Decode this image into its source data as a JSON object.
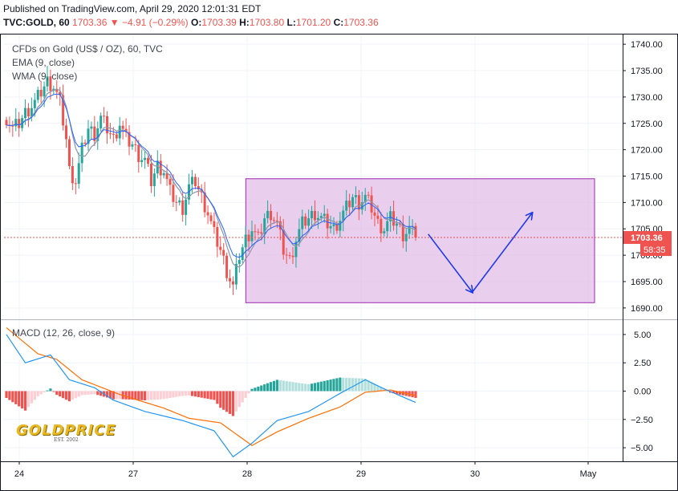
{
  "header": {
    "published": "Published on TradingView.com, April 29, 2020 12:01:31 EDT",
    "symbol": "TVC:GOLD, 60",
    "change": "1703.36 ▼ −4.91 (−0.29%)",
    "o_label": "O:",
    "o_value": "1703.39",
    "h_label": "H:",
    "h_value": "1703.80",
    "l_label": "L:",
    "l_value": "1701.20",
    "c_label": "C:",
    "c_value": "1703.36"
  },
  "legend": {
    "title": "CFDs on Gold (US$ / OZ), 60, TVC",
    "ema": "EMA (9, close)",
    "wma": "WMA (9, close)",
    "macd": "MACD (12, 26, close, 9)"
  },
  "price_tag": {
    "value": "1703.36",
    "countdown": "58:35"
  },
  "logo": {
    "name": "GOLDPRICE",
    "sub": "EST. 2002"
  },
  "colors": {
    "up": "#26a69a",
    "down": "#ef5350",
    "box_fill": "#e1bee7",
    "box_stroke": "#9c27b0",
    "arrow": "#1e3ae8",
    "ema": "#2962ff",
    "wma": "#8c97a8",
    "macd_line": "#2196f3",
    "signal_line": "#ff6d00",
    "hist_up_strong": "#26a69a",
    "hist_up_weak": "#b2dfdb",
    "hist_down_strong": "#ef5350",
    "hist_down_weak": "#ffcdd2"
  },
  "chart_data": [
    {
      "type": "candlestick",
      "title": "CFDs on Gold (US$ / OZ), 60, TVC",
      "x_ticks": [
        "24",
        "27",
        "28",
        "29",
        "30",
        "May"
      ],
      "y_ticks": [
        1690,
        1695,
        1700,
        1705,
        1710,
        1715,
        1720,
        1725,
        1730,
        1735,
        1740
      ],
      "ylim": [
        1688,
        1742
      ],
      "last_price": 1703.36,
      "anchors": [
        [
          0,
          1726
        ],
        [
          2,
          1724
        ],
        [
          4,
          1725
        ],
        [
          6,
          1727
        ],
        [
          9,
          1729
        ],
        [
          11,
          1731
        ],
        [
          13,
          1733
        ],
        [
          15,
          1732
        ],
        [
          17,
          1729
        ],
        [
          19,
          1722
        ],
        [
          20,
          1716
        ],
        [
          22,
          1714
        ],
        [
          24,
          1720
        ],
        [
          26,
          1724
        ],
        [
          28,
          1723
        ],
        [
          30,
          1726
        ],
        [
          32,
          1724
        ],
        [
          34,
          1722
        ],
        [
          36,
          1725
        ],
        [
          38,
          1722
        ],
        [
          40,
          1721
        ],
        [
          42,
          1719
        ],
        [
          44,
          1718
        ],
        [
          46,
          1714
        ],
        [
          48,
          1717
        ],
        [
          50,
          1716
        ],
        [
          52,
          1712
        ],
        [
          54,
          1710
        ],
        [
          56,
          1709
        ],
        [
          58,
          1713
        ],
        [
          60,
          1714
        ],
        [
          62,
          1711
        ],
        [
          64,
          1708
        ],
        [
          66,
          1704
        ],
        [
          68,
          1701
        ],
        [
          70,
          1697
        ],
        [
          72,
          1694
        ],
        [
          74,
          1700
        ],
        [
          76,
          1703
        ],
        [
          78,
          1705
        ],
        [
          80,
          1703
        ],
        [
          82,
          1707
        ],
        [
          84,
          1708
        ],
        [
          86,
          1706
        ],
        [
          88,
          1701
        ],
        [
          90,
          1699
        ],
        [
          92,
          1703
        ],
        [
          94,
          1706
        ],
        [
          96,
          1707
        ],
        [
          98,
          1708
        ],
        [
          100,
          1707
        ],
        [
          102,
          1706
        ],
        [
          104,
          1705
        ],
        [
          106,
          1707
        ],
        [
          108,
          1709
        ],
        [
          110,
          1711
        ],
        [
          112,
          1710
        ],
        [
          114,
          1711
        ],
        [
          116,
          1709
        ],
        [
          118,
          1706
        ],
        [
          120,
          1705
        ],
        [
          122,
          1707
        ],
        [
          124,
          1706
        ],
        [
          126,
          1704
        ],
        [
          128,
          1705
        ],
        [
          130,
          1703.36
        ]
      ],
      "rectangle": {
        "x_start": 74,
        "x_end": 175,
        "y_low": 1691,
        "y_high": 1714.5
      },
      "projection_arrows": [
        {
          "from": [
            134,
            1704
          ],
          "to": [
            148,
            1693
          ]
        },
        {
          "from": [
            148,
            1693
          ],
          "to": [
            167,
            1708
          ]
        }
      ]
    },
    {
      "type": "macd",
      "title": "MACD (12, 26, close, 9)",
      "y_ticks": [
        5.0,
        2.5,
        0.0,
        -2.5,
        -5.0
      ],
      "ylim": [
        -6.2,
        6.2
      ],
      "macd_anchors": [
        [
          0,
          5.0
        ],
        [
          6,
          2.5
        ],
        [
          14,
          3.2
        ],
        [
          20,
          1.0
        ],
        [
          28,
          0.3
        ],
        [
          34,
          -0.8
        ],
        [
          44,
          -1.8
        ],
        [
          56,
          -2.6
        ],
        [
          66,
          -3.5
        ],
        [
          72,
          -5.8
        ],
        [
          78,
          -4.6
        ],
        [
          86,
          -2.6
        ],
        [
          96,
          -1.8
        ],
        [
          106,
          -0.2
        ],
        [
          114,
          1.0
        ],
        [
          120,
          0.2
        ],
        [
          130,
          -1.0
        ]
      ],
      "signal_anchors": [
        [
          0,
          5.6
        ],
        [
          10,
          3.3
        ],
        [
          16,
          2.8
        ],
        [
          24,
          1.0
        ],
        [
          36,
          -0.3
        ],
        [
          50,
          -1.5
        ],
        [
          58,
          -2.4
        ],
        [
          68,
          -2.8
        ],
        [
          78,
          -4.8
        ],
        [
          86,
          -3.6
        ],
        [
          96,
          -2.4
        ],
        [
          106,
          -1.4
        ],
        [
          114,
          -0.1
        ],
        [
          122,
          0.1
        ],
        [
          130,
          -0.4
        ]
      ]
    }
  ]
}
